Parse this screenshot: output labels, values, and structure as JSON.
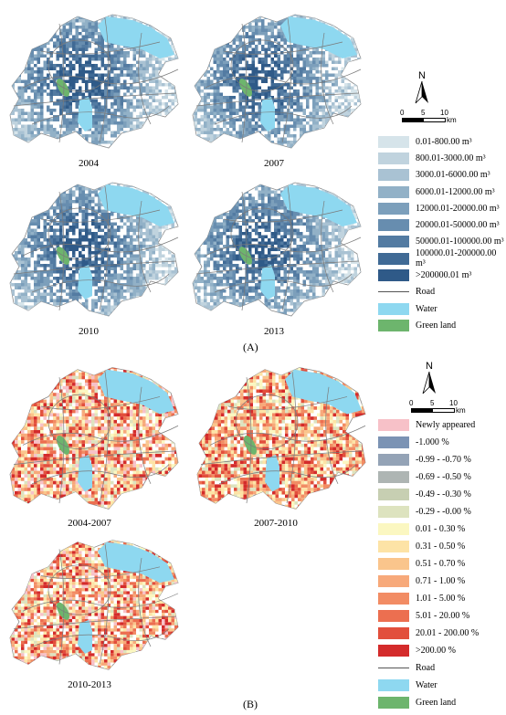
{
  "panel_a": {
    "label": "(A)",
    "maps": [
      {
        "year": "2004"
      },
      {
        "year": "2007"
      },
      {
        "year": "2010"
      },
      {
        "year": "2013"
      }
    ],
    "north_label": "N",
    "scale": {
      "ticks": [
        "0",
        "5",
        "10"
      ],
      "unit": "km"
    },
    "legend": [
      {
        "label": "0.01-800.00 m³",
        "color": "#d6e4ea"
      },
      {
        "label": "800.01-3000.00 m³",
        "color": "#c0d3de"
      },
      {
        "label": "3000.01-6000.00 m³",
        "color": "#a9c2d3"
      },
      {
        "label": "6000.01-12000.00 m³",
        "color": "#92b1c7"
      },
      {
        "label": "12000.01-20000.00 m³",
        "color": "#7c9fbb"
      },
      {
        "label": "20000.01-50000.00 m³",
        "color": "#678daf"
      },
      {
        "label": "50000.01-100000.00 m³",
        "color": "#537ba2"
      },
      {
        "label": "100000.01-200000.00 m³",
        "color": "#406a95"
      },
      {
        "label": ">200000.01 m³",
        "color": "#2f5a88"
      }
    ],
    "legend_road": "Road",
    "legend_water": "Water",
    "legend_green": "Green land",
    "colors": {
      "water": "#8ed8f0",
      "green": "#6db56d",
      "boundary": "#8a8a8a",
      "road": "#7a7a7a"
    }
  },
  "panel_b": {
    "label": "(B)",
    "maps": [
      {
        "period": "2004-2007"
      },
      {
        "period": "2007-2010"
      },
      {
        "period": "2010-2013"
      }
    ],
    "north_label": "N",
    "scale": {
      "ticks": [
        "0",
        "5",
        "10"
      ],
      "unit": "km"
    },
    "legend": [
      {
        "label": "Newly appeared",
        "color": "#f7c1c8"
      },
      {
        "label": "-1.000 %",
        "color": "#7b93b4"
      },
      {
        "label": "-0.99 - -0.70 %",
        "color": "#94a3b6"
      },
      {
        "label": "-0.69 - -0.50 %",
        "color": "#aeb5b3"
      },
      {
        "label": "-0.49 - -0.30 %",
        "color": "#c7cfb2"
      },
      {
        "label": "-0.29 - -0.00 %",
        "color": "#dde3bf"
      },
      {
        "label": "0.01 - 0.30 %",
        "color": "#fbf7c1"
      },
      {
        "label": "0.31 - 0.50 %",
        "color": "#fde3a6"
      },
      {
        "label": "0.51 - 0.70 %",
        "color": "#fac58c"
      },
      {
        "label": "0.71 - 1.00 %",
        "color": "#f7a97a"
      },
      {
        "label": "1.01 - 5.00 %",
        "color": "#f28c64"
      },
      {
        "label": "5.01 - 20.00 %",
        "color": "#ec6f50"
      },
      {
        "label": "20.01 - 200.00 %",
        "color": "#e24f3c"
      },
      {
        "label": ">200.00 %",
        "color": "#d42b2b"
      }
    ],
    "legend_road": "Road",
    "legend_water": "Water",
    "legend_green": "Green land"
  }
}
